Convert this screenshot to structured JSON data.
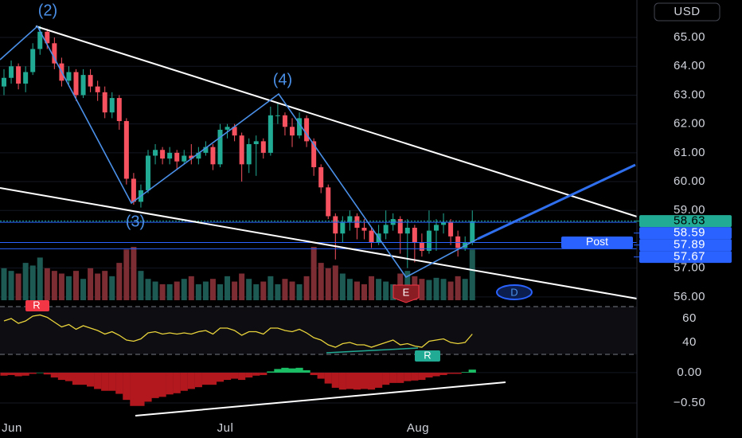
{
  "header": {
    "currency": "USD"
  },
  "time_axis": [
    "Jun",
    "Jul",
    "Aug"
  ],
  "annotations": {
    "waves": [
      "(2)",
      "(3)",
      "(4)"
    ],
    "badge_r1": "R",
    "badge_r2": "R",
    "badge_e": "E",
    "badge_d": "D"
  },
  "chart_data": [
    {
      "type": "candlestick",
      "up_color": "#22ab94",
      "down_color": "#f7525f",
      "volume_up_color": "#1d5a54",
      "volume_down_color": "#7c2d33",
      "ylim": [
        55.72,
        66.3
      ],
      "yticks": [
        {
          "value": 65,
          "label": "65.00"
        },
        {
          "value": 64,
          "label": "64.00"
        },
        {
          "value": 63,
          "label": "63.00"
        },
        {
          "value": 62,
          "label": "62.00"
        },
        {
          "value": 61,
          "label": "61.00"
        },
        {
          "value": 60,
          "label": "60.00"
        },
        {
          "value": 59,
          "label": "59.00"
        },
        {
          "value": 57,
          "label": "57.00"
        },
        {
          "value": 56,
          "label": "56.00"
        }
      ],
      "price_lines": [
        {
          "value": 58.63,
          "color": "#22ab94"
        },
        {
          "value": 58.59,
          "color": "#2962ff"
        },
        {
          "value": 57.89,
          "color": "#2962ff",
          "name": "Post"
        },
        {
          "value": 57.67,
          "color": "#2962ff"
        }
      ],
      "candles": [
        [
          63.3,
          63.9,
          63.0,
          63.6
        ],
        [
          63.6,
          64.2,
          63.4,
          64.0
        ],
        [
          64.0,
          64.1,
          63.2,
          63.4
        ],
        [
          63.4,
          64.0,
          63.1,
          63.8
        ],
        [
          63.8,
          64.8,
          63.7,
          64.6
        ],
        [
          64.6,
          65.4,
          64.4,
          65.2
        ],
        [
          65.2,
          65.3,
          64.6,
          64.8
        ],
        [
          64.8,
          65.0,
          63.9,
          64.1
        ],
        [
          64.1,
          64.3,
          63.3,
          63.5
        ],
        [
          63.5,
          64.0,
          63.3,
          63.8
        ],
        [
          63.8,
          63.9,
          62.8,
          63.0
        ],
        [
          63.0,
          63.9,
          62.9,
          63.7
        ],
        [
          63.7,
          63.9,
          63.1,
          63.3
        ],
        [
          63.3,
          63.5,
          62.8,
          63.1
        ],
        [
          63.1,
          63.3,
          62.2,
          62.4
        ],
        [
          62.4,
          63.1,
          62.2,
          62.9
        ],
        [
          62.9,
          63.0,
          61.8,
          62.1
        ],
        [
          62.1,
          62.2,
          59.9,
          60.1
        ],
        [
          60.1,
          60.3,
          59.2,
          59.3
        ],
        [
          59.3,
          59.9,
          59.1,
          59.7
        ],
        [
          59.7,
          61.1,
          59.6,
          60.9
        ],
        [
          60.9,
          61.3,
          60.6,
          61.1
        ],
        [
          61.1,
          61.2,
          60.6,
          60.8
        ],
        [
          60.8,
          61.2,
          60.6,
          61.0
        ],
        [
          61.0,
          61.1,
          60.4,
          60.7
        ],
        [
          60.7,
          61.1,
          60.6,
          60.9
        ],
        [
          60.9,
          61.3,
          60.6,
          60.8
        ],
        [
          60.8,
          61.2,
          60.6,
          61.0
        ],
        [
          61.0,
          61.4,
          60.9,
          61.2
        ],
        [
          61.2,
          61.3,
          60.4,
          60.6
        ],
        [
          60.6,
          62.0,
          60.5,
          61.8
        ],
        [
          61.8,
          62.0,
          61.5,
          61.9
        ],
        [
          61.9,
          62.0,
          61.4,
          61.6
        ],
        [
          61.6,
          61.7,
          60.0,
          60.6
        ],
        [
          60.6,
          61.5,
          60.3,
          61.3
        ],
        [
          61.3,
          61.6,
          60.2,
          61.4
        ],
        [
          61.4,
          61.5,
          60.8,
          61.0
        ],
        [
          61.0,
          62.6,
          60.9,
          62.3
        ],
        [
          62.3,
          62.7,
          62.0,
          62.3
        ],
        [
          62.3,
          62.4,
          61.6,
          61.9
        ],
        [
          61.9,
          62.2,
          61.2,
          61.6
        ],
        [
          61.6,
          62.4,
          61.5,
          62.2
        ],
        [
          62.2,
          62.3,
          61.2,
          61.4
        ],
        [
          61.4,
          61.5,
          60.2,
          60.5
        ],
        [
          60.5,
          60.6,
          59.6,
          59.8
        ],
        [
          59.8,
          59.9,
          58.7,
          58.8
        ],
        [
          58.8,
          58.9,
          57.3,
          58.2
        ],
        [
          58.2,
          58.8,
          57.9,
          58.6
        ],
        [
          58.6,
          59.0,
          58.3,
          58.8
        ],
        [
          58.8,
          58.9,
          58.0,
          58.4
        ],
        [
          58.4,
          58.7,
          58.0,
          58.3
        ],
        [
          58.3,
          58.4,
          57.7,
          57.9
        ],
        [
          57.9,
          58.5,
          57.8,
          58.2
        ],
        [
          58.2,
          59.0,
          58.0,
          58.5
        ],
        [
          58.5,
          58.9,
          58.3,
          58.7
        ],
        [
          58.7,
          58.8,
          57.5,
          58.2
        ],
        [
          58.2,
          58.7,
          57.0,
          58.4
        ],
        [
          58.4,
          58.5,
          57.2,
          57.9
        ],
        [
          57.9,
          58.2,
          57.4,
          57.6
        ],
        [
          57.6,
          59.0,
          57.5,
          58.3
        ],
        [
          58.3,
          58.7,
          57.6,
          58.5
        ],
        [
          58.5,
          58.9,
          58.2,
          58.6
        ],
        [
          58.6,
          58.7,
          57.8,
          58.1
        ],
        [
          58.1,
          58.3,
          57.4,
          57.7
        ],
        [
          57.7,
          58.1,
          57.6,
          57.9
        ],
        [
          57.9,
          59.0,
          57.8,
          58.63
        ]
      ],
      "volume": [
        60,
        55,
        50,
        70,
        65,
        80,
        60,
        55,
        50,
        45,
        55,
        40,
        60,
        50,
        55,
        45,
        70,
        95,
        100,
        55,
        40,
        35,
        30,
        30,
        35,
        40,
        45,
        30,
        35,
        40,
        30,
        45,
        35,
        50,
        40,
        30,
        35,
        45,
        30,
        40,
        35,
        30,
        45,
        100,
        70,
        60,
        65,
        50,
        40,
        35,
        30,
        45,
        40,
        35,
        30,
        50,
        55,
        45,
        40,
        38,
        42,
        40,
        35,
        45,
        40,
        95
      ]
    },
    {
      "type": "line",
      "color": "#e9d33b",
      "band_color": "#787b86",
      "ylim": [
        26.7,
        71.3
      ],
      "yticks": [
        60,
        40
      ],
      "bands": [
        70,
        30
      ],
      "values": [
        58,
        60,
        56,
        58,
        62,
        63,
        61,
        57,
        53,
        55,
        51,
        54,
        52,
        50,
        47,
        49,
        46,
        42,
        41,
        43,
        48,
        49,
        47,
        48,
        47,
        48,
        47,
        49,
        50,
        47,
        52,
        52,
        50,
        46,
        49,
        49,
        47,
        52,
        52,
        50,
        49,
        51,
        48,
        44,
        42,
        38,
        36,
        39,
        40,
        38,
        38,
        36,
        38,
        40,
        42,
        38,
        39,
        37,
        36,
        41,
        42,
        43,
        40,
        39,
        40,
        47
      ]
    },
    {
      "type": "bar",
      "up_color": "#1bbe65",
      "down_color": "#b2181e",
      "ylim": [
        -0.816,
        0.17
      ],
      "yticks": [
        {
          "value": 0,
          "label": "0.00"
        },
        {
          "value": -0.5,
          "label": "−0.50"
        }
      ],
      "values": [
        -0.05,
        -0.04,
        -0.06,
        -0.05,
        -0.02,
        0.0,
        -0.03,
        -0.08,
        -0.12,
        -0.14,
        -0.2,
        -0.2,
        -0.23,
        -0.27,
        -0.3,
        -0.3,
        -0.35,
        -0.45,
        -0.55,
        -0.55,
        -0.48,
        -0.42,
        -0.4,
        -0.36,
        -0.34,
        -0.3,
        -0.27,
        -0.24,
        -0.2,
        -0.2,
        -0.15,
        -0.12,
        -0.1,
        -0.12,
        -0.08,
        -0.05,
        -0.04,
        0.02,
        0.06,
        0.08,
        0.07,
        0.08,
        0.04,
        -0.04,
        -0.1,
        -0.18,
        -0.25,
        -0.28,
        -0.27,
        -0.28,
        -0.27,
        -0.28,
        -0.25,
        -0.2,
        -0.17,
        -0.17,
        -0.14,
        -0.13,
        -0.12,
        -0.08,
        -0.06,
        -0.04,
        -0.02,
        -0.02,
        0.01,
        0.05
      ]
    }
  ]
}
